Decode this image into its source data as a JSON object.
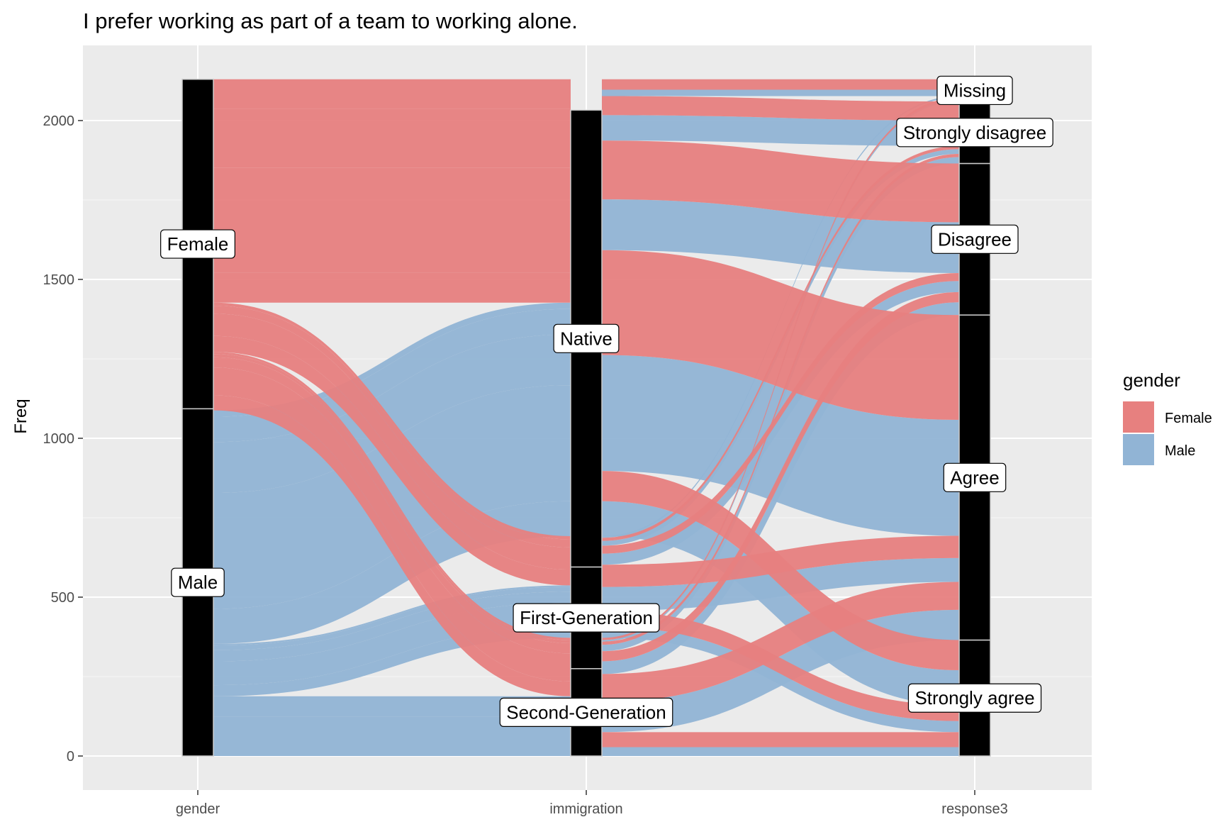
{
  "colors": {
    "female": "#e7807f",
    "male": "#91b4d5",
    "panel": "#ebebeb",
    "grid_major": "#ffffff",
    "stratum": "#000000"
  },
  "chart_data": {
    "type": "alluvial",
    "title": "I prefer working as part of a team to working alone.",
    "ylabel": "Freq",
    "xlabel": "",
    "ylim": [
      -100,
      2130
    ],
    "y_ticks": [
      0,
      500,
      1000,
      1500,
      2000
    ],
    "axes": [
      "gender",
      "immigration",
      "response3"
    ],
    "legend": {
      "title": "gender",
      "position": "right",
      "items": [
        {
          "label": "Female",
          "color": "#e7807f"
        },
        {
          "label": "Male",
          "color": "#91b4d5"
        }
      ]
    },
    "strata": {
      "gender": [
        {
          "label": "Male",
          "from": 0,
          "to": 1093
        },
        {
          "label": "Female",
          "from": 1093,
          "to": 2130
        }
      ],
      "immigration": [
        {
          "label": "Second-Generation",
          "from": 0,
          "to": 275
        },
        {
          "label": "First-Generation",
          "from": 275,
          "to": 595
        },
        {
          "label": "Native",
          "from": 595,
          "to": 2033
        }
      ],
      "response3": [
        {
          "label": "Strongly agree",
          "from": 0,
          "to": 365
        },
        {
          "label": "Agree",
          "from": 365,
          "to": 1388
        },
        {
          "label": "Disagree",
          "from": 1388,
          "to": 1865
        },
        {
          "label": "Strongly disagree",
          "from": 1865,
          "to": 2060
        },
        {
          "label": "Missing",
          "from": 2060,
          "to": 2130
        }
      ]
    },
    "flows": [
      {
        "gender": "Male",
        "immigration": "Native",
        "response": "Strongly agree",
        "value": 110
      },
      {
        "gender": "Male",
        "immigration": "Native",
        "response": "Agree",
        "value": 365
      },
      {
        "gender": "Male",
        "immigration": "Native",
        "response": "Disagree",
        "value": 160
      },
      {
        "gender": "Male",
        "immigration": "Native",
        "response": "Strongly disagree",
        "value": 80
      },
      {
        "gender": "Male",
        "immigration": "Native",
        "response": "Missing",
        "value": 20
      },
      {
        "gender": "Male",
        "immigration": "First-Generation",
        "response": "Strongly agree",
        "value": 35
      },
      {
        "gender": "Male",
        "immigration": "First-Generation",
        "response": "Agree",
        "value": 75
      },
      {
        "gender": "Male",
        "immigration": "First-Generation",
        "response": "Disagree",
        "value": 35
      },
      {
        "gender": "Male",
        "immigration": "First-Generation",
        "response": "Strongly disagree",
        "value": 15
      },
      {
        "gender": "Male",
        "immigration": "First-Generation",
        "response": "Missing",
        "value": 5
      },
      {
        "gender": "Male",
        "immigration": "Second-Generation",
        "response": "Strongly agree",
        "value": 28
      },
      {
        "gender": "Male",
        "immigration": "Second-Generation",
        "response": "Agree",
        "value": 95
      },
      {
        "gender": "Male",
        "immigration": "Second-Generation",
        "response": "Disagree",
        "value": 40
      },
      {
        "gender": "Male",
        "immigration": "Second-Generation",
        "response": "Strongly disagree",
        "value": 20
      },
      {
        "gender": "Male",
        "immigration": "Second-Generation",
        "response": "Missing",
        "value": 5
      },
      {
        "gender": "Female",
        "immigration": "Native",
        "response": "Strongly agree",
        "value": 95
      },
      {
        "gender": "Female",
        "immigration": "Native",
        "response": "Agree",
        "value": 330
      },
      {
        "gender": "Female",
        "immigration": "Native",
        "response": "Disagree",
        "value": 185
      },
      {
        "gender": "Female",
        "immigration": "Native",
        "response": "Strongly disagree",
        "value": 60
      },
      {
        "gender": "Female",
        "immigration": "Native",
        "response": "Missing",
        "value": 33
      },
      {
        "gender": "Female",
        "immigration": "First-Generation",
        "response": "Strongly agree",
        "value": 50
      },
      {
        "gender": "Female",
        "immigration": "First-Generation",
        "response": "Agree",
        "value": 70
      },
      {
        "gender": "Female",
        "immigration": "First-Generation",
        "response": "Disagree",
        "value": 25
      },
      {
        "gender": "Female",
        "immigration": "First-Generation",
        "response": "Strongly disagree",
        "value": 10
      },
      {
        "gender": "Female",
        "immigration": "First-Generation",
        "response": "Missing",
        "value": 0
      },
      {
        "gender": "Female",
        "immigration": "Second-Generation",
        "response": "Strongly agree",
        "value": 47
      },
      {
        "gender": "Female",
        "immigration": "Second-Generation",
        "response": "Agree",
        "value": 88
      },
      {
        "gender": "Female",
        "immigration": "Second-Generation",
        "response": "Disagree",
        "value": 32
      },
      {
        "gender": "Female",
        "immigration": "Second-Generation",
        "response": "Strongly disagree",
        "value": 10
      },
      {
        "gender": "Female",
        "immigration": "Second-Generation",
        "response": "Missing",
        "value": 7
      }
    ]
  }
}
